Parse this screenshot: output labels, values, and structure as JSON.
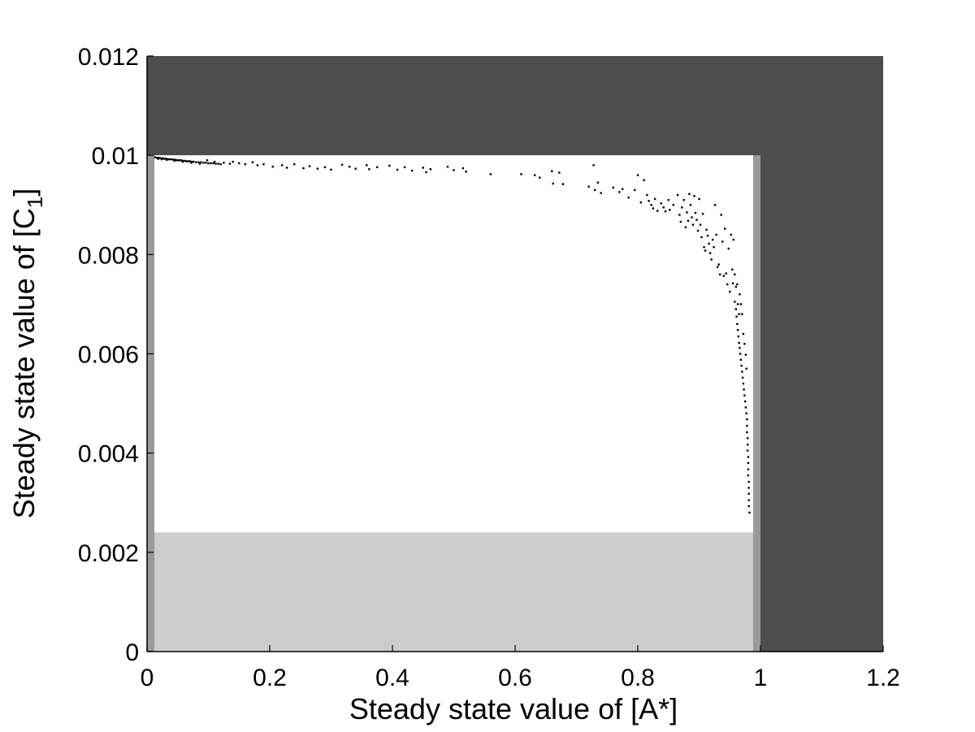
{
  "chart_data": {
    "type": "scatter",
    "title": "",
    "xlabel": "Steady state value of [A*]",
    "ylabel_main": "Steady state value of [C",
    "ylabel_sub": "1",
    "ylabel_close": "]",
    "xlim": [
      0,
      1.2
    ],
    "ylim": [
      0,
      0.012
    ],
    "grid": false,
    "legend": "none",
    "x_ticks": [
      "0",
      "0.2",
      "0.4",
      "0.6",
      "0.8",
      "1",
      "1.2"
    ],
    "y_ticks": [
      "0",
      "0.002",
      "0.004",
      "0.006",
      "0.008",
      "0.01",
      "0.012"
    ],
    "regions": [
      {
        "name": "dark-region",
        "color": "#4d4d4d",
        "x": [
          0,
          1.2
        ],
        "y": [
          0,
          0.012
        ]
      },
      {
        "name": "medium-region",
        "color": "#9a9a9a",
        "x": [
          0,
          1.0
        ],
        "y": [
          0,
          0.01
        ]
      },
      {
        "name": "light-region",
        "color": "#cccccc",
        "x": [
          0.012,
          0.988
        ],
        "y": [
          0,
          0.01
        ]
      },
      {
        "name": "white-region",
        "color": "#ffffff",
        "x": [
          0.012,
          0.988
        ],
        "y": [
          0.0024,
          0.01
        ]
      }
    ],
    "series": [
      {
        "color": "#000000",
        "points": [
          [
            0.013,
            0.00996
          ],
          [
            0.016,
            0.00995
          ],
          [
            0.019,
            0.00995
          ],
          [
            0.022,
            0.00994
          ],
          [
            0.025,
            0.00994
          ],
          [
            0.028,
            0.00993
          ],
          [
            0.031,
            0.00993
          ],
          [
            0.034,
            0.00992
          ],
          [
            0.037,
            0.00992
          ],
          [
            0.04,
            0.00992
          ],
          [
            0.043,
            0.00991
          ],
          [
            0.046,
            0.00991
          ],
          [
            0.049,
            0.0099
          ],
          [
            0.052,
            0.0099
          ],
          [
            0.055,
            0.0099
          ],
          [
            0.058,
            0.00989
          ],
          [
            0.061,
            0.00989
          ],
          [
            0.064,
            0.00988
          ],
          [
            0.067,
            0.00988
          ],
          [
            0.07,
            0.00988
          ],
          [
            0.073,
            0.00987
          ],
          [
            0.076,
            0.00987
          ],
          [
            0.08,
            0.00986
          ],
          [
            0.084,
            0.00986
          ],
          [
            0.088,
            0.00986
          ],
          [
            0.092,
            0.00985
          ],
          [
            0.096,
            0.00985
          ],
          [
            0.1,
            0.00984
          ],
          [
            0.104,
            0.00984
          ],
          [
            0.108,
            0.00984
          ],
          [
            0.112,
            0.00983
          ],
          [
            0.116,
            0.00983
          ],
          [
            0.12,
            0.00982
          ],
          [
            0.018,
            0.00993
          ],
          [
            0.024,
            0.00992
          ],
          [
            0.032,
            0.00991
          ],
          [
            0.045,
            0.00989
          ],
          [
            0.058,
            0.00987
          ],
          [
            0.072,
            0.00985
          ],
          [
            0.086,
            0.00983
          ],
          [
            0.098,
            0.0099
          ],
          [
            0.11,
            0.00987
          ],
          [
            0.125,
            0.00985
          ],
          [
            0.135,
            0.00983
          ],
          [
            0.14,
            0.00987
          ],
          [
            0.15,
            0.00984
          ],
          [
            0.16,
            0.00982
          ],
          [
            0.172,
            0.00986
          ],
          [
            0.18,
            0.0098
          ],
          [
            0.19,
            0.00982
          ],
          [
            0.205,
            0.00977
          ],
          [
            0.22,
            0.0098
          ],
          [
            0.228,
            0.00975
          ],
          [
            0.24,
            0.00982
          ],
          [
            0.255,
            0.00974
          ],
          [
            0.265,
            0.00978
          ],
          [
            0.278,
            0.00973
          ],
          [
            0.29,
            0.00976
          ],
          [
            0.3,
            0.00971
          ],
          [
            0.318,
            0.00981
          ],
          [
            0.33,
            0.00977
          ],
          [
            0.34,
            0.00973
          ],
          [
            0.358,
            0.0098
          ],
          [
            0.362,
            0.00972
          ],
          [
            0.375,
            0.00976
          ],
          [
            0.395,
            0.00979
          ],
          [
            0.408,
            0.00971
          ],
          [
            0.42,
            0.00976
          ],
          [
            0.432,
            0.00969
          ],
          [
            0.45,
            0.00975
          ],
          [
            0.455,
            0.00966
          ],
          [
            0.462,
            0.00972
          ],
          [
            0.49,
            0.00977
          ],
          [
            0.5,
            0.0097
          ],
          [
            0.515,
            0.00974
          ],
          [
            0.52,
            0.00967
          ],
          [
            0.56,
            0.00962
          ],
          [
            0.61,
            0.00962
          ],
          [
            0.632,
            0.0096
          ],
          [
            0.64,
            0.00955
          ],
          [
            0.66,
            0.00968
          ],
          [
            0.662,
            0.00943
          ],
          [
            0.672,
            0.00965
          ],
          [
            0.678,
            0.00942
          ],
          [
            0.72,
            0.00937
          ],
          [
            0.728,
            0.0098
          ],
          [
            0.73,
            0.0093
          ],
          [
            0.735,
            0.00945
          ],
          [
            0.74,
            0.00924
          ],
          [
            0.76,
            0.00935
          ],
          [
            0.77,
            0.00926
          ],
          [
            0.775,
            0.00932
          ],
          [
            0.785,
            0.00915
          ],
          [
            0.795,
            0.0093
          ],
          [
            0.8,
            0.0096
          ],
          [
            0.805,
            0.00905
          ],
          [
            0.81,
            0.0095
          ],
          [
            0.815,
            0.0092
          ],
          [
            0.818,
            0.00908
          ],
          [
            0.822,
            0.009
          ],
          [
            0.825,
            0.00893
          ],
          [
            0.828,
            0.00912
          ],
          [
            0.832,
            0.00888
          ],
          [
            0.838,
            0.00903
          ],
          [
            0.842,
            0.00895
          ],
          [
            0.845,
            0.00887
          ],
          [
            0.85,
            0.0091
          ],
          [
            0.852,
            0.0089
          ],
          [
            0.858,
            0.009
          ],
          [
            0.865,
            0.0092
          ],
          [
            0.868,
            0.0088
          ],
          [
            0.87,
            0.00866
          ],
          [
            0.872,
            0.00895
          ],
          [
            0.875,
            0.0091
          ],
          [
            0.878,
            0.00855
          ],
          [
            0.88,
            0.00885
          ],
          [
            0.882,
            0.00868
          ],
          [
            0.884,
            0.00922
          ],
          [
            0.886,
            0.009
          ],
          [
            0.888,
            0.00875
          ],
          [
            0.89,
            0.0086
          ],
          [
            0.892,
            0.00918
          ],
          [
            0.894,
            0.00884
          ],
          [
            0.896,
            0.0087
          ],
          [
            0.898,
            0.00848
          ],
          [
            0.9,
            0.00912
          ],
          [
            0.902,
            0.0086
          ],
          [
            0.904,
            0.00835
          ],
          [
            0.906,
            0.00882
          ],
          [
            0.908,
            0.00815
          ],
          [
            0.91,
            0.00808
          ],
          [
            0.912,
            0.0085
          ],
          [
            0.914,
            0.00838
          ],
          [
            0.916,
            0.00822
          ],
          [
            0.918,
            0.00803
          ],
          [
            0.92,
            0.0079
          ],
          [
            0.922,
            0.0083
          ],
          [
            0.924,
            0.00815
          ],
          [
            0.926,
            0.009
          ],
          [
            0.928,
            0.0084
          ],
          [
            0.93,
            0.00775
          ],
          [
            0.932,
            0.0078
          ],
          [
            0.934,
            0.0076
          ],
          [
            0.936,
            0.0088
          ],
          [
            0.938,
            0.00826
          ],
          [
            0.94,
            0.00757
          ],
          [
            0.942,
            0.00852
          ],
          [
            0.944,
            0.00762
          ],
          [
            0.946,
            0.0074
          ],
          [
            0.948,
            0.00812
          ],
          [
            0.95,
            0.00725
          ],
          [
            0.952,
            0.0084
          ],
          [
            0.954,
            0.0077
          ],
          [
            0.955,
            0.00742
          ],
          [
            0.956,
            0.0083
          ],
          [
            0.958,
            0.00705
          ],
          [
            0.96,
            0.0069
          ],
          [
            0.961,
            0.00675
          ],
          [
            0.962,
            0.0066
          ],
          [
            0.963,
            0.00648
          ],
          [
            0.964,
            0.00635
          ],
          [
            0.965,
            0.00622
          ],
          [
            0.966,
            0.00612
          ],
          [
            0.967,
            0.006
          ],
          [
            0.968,
            0.00588
          ],
          [
            0.966,
            0.0072
          ],
          [
            0.969,
            0.00576
          ],
          [
            0.97,
            0.00564
          ],
          [
            0.968,
            0.007
          ],
          [
            0.971,
            0.00552
          ],
          [
            0.972,
            0.0054
          ],
          [
            0.97,
            0.0068
          ],
          [
            0.973,
            0.00528
          ],
          [
            0.974,
            0.00516
          ],
          [
            0.972,
            0.0064
          ],
          [
            0.975,
            0.00504
          ],
          [
            0.976,
            0.00492
          ],
          [
            0.974,
            0.0062
          ],
          [
            0.977,
            0.0048
          ],
          [
            0.978,
            0.00468
          ],
          [
            0.976,
            0.00598
          ],
          [
            0.978,
            0.00455
          ],
          [
            0.978,
            0.00442
          ],
          [
            0.977,
            0.0057
          ],
          [
            0.979,
            0.0043
          ],
          [
            0.979,
            0.00417
          ],
          [
            0.979,
            0.00405
          ],
          [
            0.98,
            0.00392
          ],
          [
            0.98,
            0.0038
          ],
          [
            0.98,
            0.00367
          ],
          [
            0.98,
            0.00355
          ],
          [
            0.981,
            0.00342
          ],
          [
            0.981,
            0.0033
          ],
          [
            0.981,
            0.00318
          ],
          [
            0.981,
            0.00305
          ],
          [
            0.981,
            0.00293
          ],
          [
            0.982,
            0.0028
          ],
          [
            0.963,
            0.007
          ],
          [
            0.965,
            0.0068
          ],
          [
            0.962,
            0.0074
          ],
          [
            0.958,
            0.0076
          ],
          [
            0.96,
            0.00735
          ]
        ]
      }
    ]
  }
}
